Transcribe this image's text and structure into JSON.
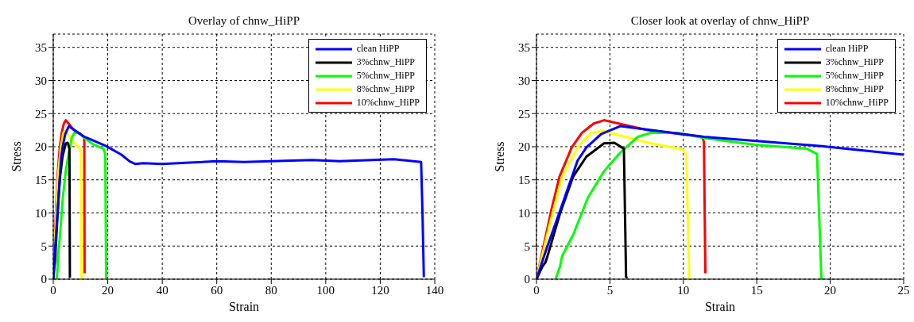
{
  "chart_data": [
    {
      "type": "line",
      "title": "Overlay of chnw_HiPP",
      "xlabel": "Strain",
      "ylabel": "Stress",
      "xlim": [
        0,
        140
      ],
      "xticks": [
        0,
        20,
        40,
        60,
        80,
        100,
        120,
        140
      ],
      "ylim": [
        0,
        37
      ],
      "yticks": [
        0,
        5,
        10,
        15,
        20,
        25,
        30,
        35
      ],
      "grid": true,
      "legend": "top right",
      "marker": "none",
      "line_style": "solid",
      "series": [
        {
          "name": "clean HiPP",
          "color": "#0000ff",
          "x": [
            0,
            0.7,
            1.6,
            2.8,
            3.4,
            4.4,
            5.7,
            7.8,
            11.4,
            19.4,
            25,
            28,
            30,
            33,
            40,
            50,
            60,
            70,
            80,
            95,
            105,
            125,
            135,
            135.5,
            136
          ],
          "values": [
            0,
            4.7,
            10.3,
            17.9,
            19.9,
            21.9,
            23.1,
            22.5,
            21.5,
            20.1,
            18.8,
            17.8,
            17.4,
            17.5,
            17.4,
            17.6,
            17.8,
            17.7,
            17.8,
            18.0,
            17.8,
            18.1,
            17.7,
            10,
            0.3
          ]
        },
        {
          "name": "3%chnw_HiPP",
          "color": "#000000",
          "x": [
            0,
            0.4,
            0.6,
            0.7,
            1.6,
            2.5,
            3.4,
            4.6,
            5.3,
            5.95,
            6.0,
            6.1,
            6.2
          ],
          "values": [
            0,
            1.9,
            2.5,
            3.1,
            9.9,
            15.5,
            18.5,
            20.5,
            20.6,
            19.7,
            13.5,
            0.3,
            0.2
          ]
        },
        {
          "name": "5%chnw_HiPP",
          "color": "#00ff00",
          "x": [
            1.3,
            1.6,
            1.75,
            2.5,
            3.5,
            4.6,
            5.7,
            6.9,
            7.8,
            9.6,
            11.4,
            14.9,
            18.4,
            19.1,
            19.25,
            19.4
          ],
          "values": [
            0,
            1.9,
            3.5,
            6.7,
            12.3,
            16.3,
            19.1,
            21.5,
            22.1,
            22.1,
            21.3,
            20.3,
            19.7,
            18.9,
            9.5,
            0
          ]
        },
        {
          "name": "8%chnw_HiPP",
          "color": "#ffff00",
          "x": [
            0,
            0.86,
            1.75,
            2.8,
            3.7,
            4.5,
            5.7,
            7.8,
            9.9,
            10.2,
            10.3,
            10.4
          ],
          "values": [
            0,
            7.9,
            15.5,
            19.9,
            22.1,
            22.4,
            21.7,
            20.5,
            19.6,
            18.9,
            9.5,
            0
          ]
        },
        {
          "name": "10%chnw_HiPP",
          "color": "#ff0000",
          "x": [
            0,
            1.04,
            1.57,
            2.4,
            3.1,
            3.9,
            4.6,
            6.0,
            7.6,
            11.3,
            11.4,
            11.5
          ],
          "values": [
            0,
            10.7,
            15.5,
            19.9,
            22.1,
            23.5,
            24.0,
            23.3,
            22.5,
            21.5,
            20.7,
            0.9
          ]
        }
      ]
    },
    {
      "type": "line",
      "title": "Closer look at overlay of chnw_HiPP",
      "xlabel": "Strain",
      "ylabel": "Stress",
      "xlim": [
        0,
        25
      ],
      "xticks": [
        0,
        5,
        10,
        15,
        20,
        25
      ],
      "ylim": [
        0,
        37
      ],
      "yticks": [
        0,
        5,
        10,
        15,
        20,
        25,
        30,
        35
      ],
      "grid": true,
      "legend": "top right",
      "marker": "none",
      "line_style": "solid",
      "series": [
        {
          "name": "clean HiPP",
          "color": "#0000ff",
          "x": [
            0,
            0.7,
            1.6,
            2.8,
            3.4,
            4.4,
            5.7,
            7.8,
            11.4,
            19.4,
            25
          ],
          "values": [
            0,
            4.7,
            10.3,
            17.9,
            19.9,
            21.9,
            23.1,
            22.5,
            21.5,
            20.1,
            18.8
          ]
        },
        {
          "name": "3%chnw_HiPP",
          "color": "#000000",
          "x": [
            0,
            0.4,
            0.6,
            0.7,
            1.6,
            2.5,
            3.4,
            4.6,
            5.3,
            5.95,
            6.0,
            6.1,
            6.2
          ],
          "values": [
            0,
            1.9,
            2.5,
            3.1,
            9.9,
            15.5,
            18.5,
            20.5,
            20.6,
            19.7,
            13.5,
            0.3,
            0.2
          ]
        },
        {
          "name": "5%chnw_HiPP",
          "color": "#00ff00",
          "x": [
            1.3,
            1.6,
            1.75,
            2.5,
            3.5,
            4.6,
            5.7,
            6.9,
            7.8,
            9.6,
            11.4,
            14.9,
            18.4,
            19.1,
            19.25,
            19.4
          ],
          "values": [
            0,
            1.9,
            3.5,
            6.7,
            12.3,
            16.3,
            19.1,
            21.5,
            22.1,
            22.1,
            21.3,
            20.3,
            19.7,
            18.9,
            9.5,
            0
          ]
        },
        {
          "name": "8%chnw_HiPP",
          "color": "#ffff00",
          "x": [
            0,
            0.86,
            1.75,
            2.8,
            3.7,
            4.5,
            5.7,
            7.8,
            9.9,
            10.2,
            10.3,
            10.4
          ],
          "values": [
            0,
            7.9,
            15.5,
            19.9,
            22.1,
            22.4,
            21.7,
            20.5,
            19.6,
            18.9,
            9.5,
            0
          ]
        },
        {
          "name": "10%chnw_HiPP",
          "color": "#ff0000",
          "x": [
            0,
            1.04,
            1.57,
            2.4,
            3.1,
            3.9,
            4.6,
            6.0,
            7.6,
            11.3,
            11.4,
            11.5
          ],
          "values": [
            0,
            10.7,
            15.5,
            19.9,
            22.1,
            23.5,
            24.0,
            23.3,
            22.5,
            21.5,
            20.7,
            0.9
          ]
        }
      ]
    }
  ]
}
